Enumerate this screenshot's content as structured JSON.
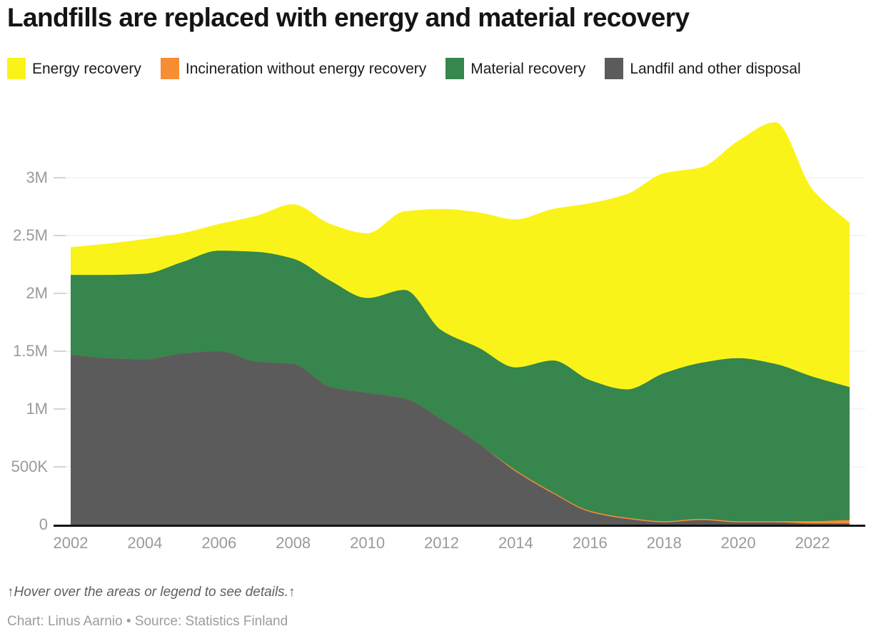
{
  "header": {
    "title": "Landfills are replaced with energy and material recovery"
  },
  "legend": {
    "items": [
      {
        "key": "energy-recovery",
        "label": "Energy recovery",
        "color": "#faf31a"
      },
      {
        "key": "incineration",
        "label": "Incineration without energy recovery",
        "color": "#f78d35"
      },
      {
        "key": "material-recovery",
        "label": "Material recovery",
        "color": "#36864d"
      },
      {
        "key": "landfill",
        "label": "Landfil and other disposal",
        "color": "#5b5b5b"
      }
    ]
  },
  "chart_data": {
    "type": "area",
    "stacked": true,
    "title": "Landfills are replaced with energy and material recovery",
    "xlabel": "",
    "ylabel": "",
    "grid": true,
    "legend_position": "top",
    "x": [
      2002,
      2003,
      2004,
      2005,
      2006,
      2007,
      2008,
      2009,
      2010,
      2011,
      2012,
      2013,
      2014,
      2015,
      2016,
      2017,
      2018,
      2019,
      2020,
      2021,
      2022,
      2023
    ],
    "series": [
      {
        "name": "Landfil and other disposal",
        "color": "#5b5b5b",
        "values": [
          1470000,
          1440000,
          1430000,
          1480000,
          1500000,
          1410000,
          1390000,
          1190000,
          1140000,
          1090000,
          910000,
          700000,
          460000,
          270000,
          110000,
          50000,
          20000,
          40000,
          20000,
          20000,
          10000,
          10000
        ]
      },
      {
        "name": "Incineration without energy recovery",
        "color": "#f78d35",
        "values": [
          0,
          0,
          0,
          0,
          0,
          0,
          0,
          0,
          0,
          0,
          0,
          0,
          10000,
          10000,
          10000,
          10000,
          10000,
          10000,
          10000,
          10000,
          20000,
          30000
        ]
      },
      {
        "name": "Material recovery",
        "color": "#36864d",
        "values": [
          690000,
          720000,
          740000,
          790000,
          870000,
          950000,
          910000,
          920000,
          820000,
          940000,
          770000,
          830000,
          890000,
          1140000,
          1130000,
          1110000,
          1280000,
          1350000,
          1410000,
          1360000,
          1250000,
          1150000
        ]
      },
      {
        "name": "Energy recovery",
        "color": "#faf31a",
        "values": [
          240000,
          270000,
          300000,
          250000,
          230000,
          310000,
          470000,
          490000,
          560000,
          680000,
          1050000,
          1170000,
          1280000,
          1310000,
          1530000,
          1690000,
          1730000,
          1690000,
          1880000,
          2090000,
          1620000,
          1420000
        ]
      }
    ],
    "ylim": [
      0,
      3500000
    ],
    "yticks": [
      {
        "value": 0,
        "label": "0"
      },
      {
        "value": 500000,
        "label": "500K"
      },
      {
        "value": 1000000,
        "label": "1M"
      },
      {
        "value": 1500000,
        "label": "1.5M"
      },
      {
        "value": 2000000,
        "label": "2M"
      },
      {
        "value": 2500000,
        "label": "2.5M"
      },
      {
        "value": 3000000,
        "label": "3M"
      }
    ],
    "xticks": [
      2002,
      2004,
      2006,
      2008,
      2010,
      2012,
      2014,
      2016,
      2018,
      2020,
      2022
    ]
  },
  "footer": {
    "hover_note": "↑Hover over the areas or legend to see details.↑",
    "credit": "Chart: Linus Aarnio • Source: Statistics Finland"
  }
}
